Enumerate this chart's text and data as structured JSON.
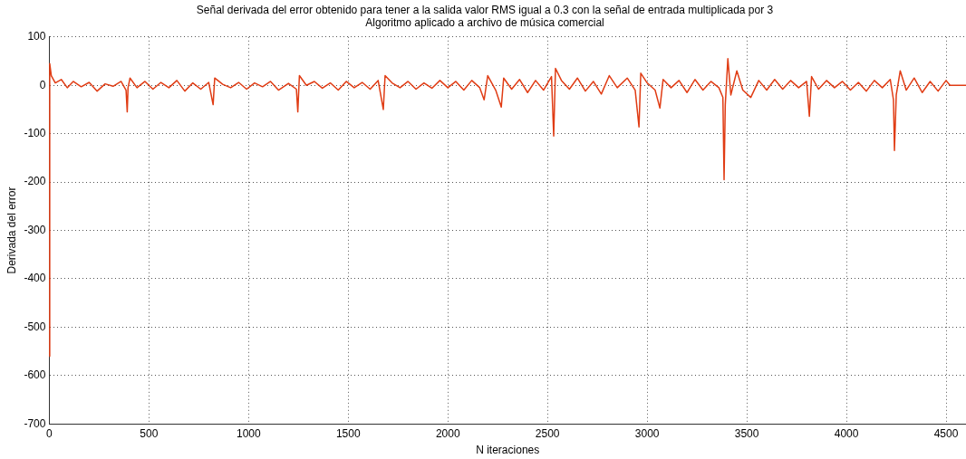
{
  "chart_data": {
    "type": "line",
    "title": "Señal derivada del error obtenido para tener a la salida valor RMS igual a 0.3 con la señal de entrada multiplicada por 3",
    "subtitle": "Algoritmo aplicado a archivo de música comercial",
    "xlabel": "N iteraciones",
    "ylabel": "Derivada del error",
    "xlim": [
      0,
      4600
    ],
    "ylim": [
      -700,
      100
    ],
    "xticks": [
      0,
      500,
      1000,
      1500,
      2000,
      2500,
      3000,
      3500,
      4000,
      4500
    ],
    "yticks": [
      -700,
      -600,
      -500,
      -400,
      -300,
      -200,
      -100,
      0,
      100
    ],
    "grid": true,
    "legend": false,
    "marker": "none",
    "line_style": "solid",
    "series": [
      {
        "color": "#e03c14",
        "x": [
          0,
          2,
          10,
          30,
          60,
          90,
          120,
          160,
          200,
          240,
          280,
          320,
          360,
          385,
          391,
          395,
          405,
          440,
          480,
          520,
          560,
          600,
          640,
          680,
          720,
          760,
          800,
          822,
          830,
          870,
          910,
          950,
          990,
          1030,
          1070,
          1110,
          1150,
          1200,
          1240,
          1247,
          1255,
          1290,
          1330,
          1370,
          1410,
          1450,
          1490,
          1530,
          1570,
          1610,
          1650,
          1676,
          1685,
          1720,
          1760,
          1800,
          1840,
          1880,
          1920,
          1960,
          2000,
          2040,
          2080,
          2120,
          2160,
          2182,
          2200,
          2240,
          2268,
          2280,
          2320,
          2360,
          2400,
          2440,
          2480,
          2520,
          2531,
          2540,
          2570,
          2610,
          2650,
          2690,
          2730,
          2770,
          2810,
          2850,
          2900,
          2940,
          2959,
          2968,
          3000,
          3040,
          3064,
          3080,
          3120,
          3160,
          3200,
          3240,
          3280,
          3320,
          3360,
          3380,
          3386,
          3392,
          3405,
          3420,
          3450,
          3480,
          3520,
          3560,
          3600,
          3640,
          3680,
          3720,
          3760,
          3800,
          3814,
          3825,
          3860,
          3900,
          3940,
          3980,
          4020,
          4060,
          4100,
          4140,
          4180,
          4220,
          4236,
          4241,
          4250,
          4270,
          4300,
          4340,
          4380,
          4420,
          4460,
          4500,
          4520,
          4600
        ],
        "values": [
          -560,
          45,
          20,
          5,
          12,
          -5,
          8,
          -3,
          6,
          -12,
          3,
          -2,
          8,
          -10,
          -55,
          -5,
          15,
          -5,
          8,
          -8,
          6,
          -5,
          10,
          -12,
          5,
          -8,
          6,
          -40,
          15,
          2,
          -5,
          6,
          -8,
          5,
          -3,
          8,
          -10,
          4,
          -8,
          -55,
          20,
          0,
          8,
          -6,
          5,
          -10,
          8,
          -5,
          6,
          -8,
          10,
          -50,
          20,
          5,
          -5,
          8,
          -8,
          5,
          -6,
          10,
          -5,
          8,
          -10,
          10,
          -5,
          -30,
          20,
          -10,
          -45,
          15,
          -8,
          12,
          -15,
          10,
          -10,
          18,
          -105,
          35,
          10,
          -8,
          15,
          -12,
          8,
          -18,
          20,
          -5,
          15,
          -10,
          -86,
          25,
          5,
          -10,
          -47,
          12,
          -5,
          10,
          -15,
          12,
          -10,
          8,
          -5,
          -25,
          -195,
          -40,
          55,
          -20,
          30,
          -10,
          -25,
          10,
          -10,
          12,
          -8,
          10,
          -5,
          8,
          -64,
          18,
          -8,
          10,
          -5,
          8,
          -10,
          6,
          -12,
          10,
          -5,
          12,
          -30,
          -135,
          -20,
          30,
          -10,
          15,
          -15,
          8,
          -12,
          10,
          0,
          0
        ]
      }
    ]
  }
}
